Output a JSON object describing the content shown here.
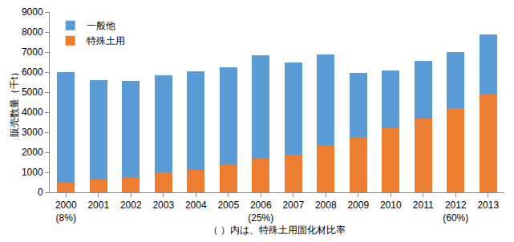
{
  "chart_data": {
    "type": "bar",
    "stacked": true,
    "categories": [
      "2000",
      "2001",
      "2002",
      "2003",
      "2004",
      "2005",
      "2006",
      "2007",
      "2008",
      "2009",
      "2010",
      "2011",
      "2012",
      "2013"
    ],
    "series": [
      {
        "name": "特殊土用",
        "color": "#ED7D31",
        "values": [
          470,
          650,
          750,
          1000,
          1130,
          1350,
          1700,
          1900,
          2350,
          2780,
          3250,
          3680,
          4200,
          4900
        ]
      },
      {
        "name": "一般他",
        "color": "#5B9BD5",
        "values": [
          5530,
          4970,
          4830,
          4850,
          4920,
          4900,
          5150,
          4600,
          4530,
          3190,
          2850,
          2870,
          2820,
          3000
        ]
      }
    ],
    "annotations": [
      {
        "category": "2000",
        "text": "(8%)"
      },
      {
        "category": "2006",
        "text": "(25%)"
      },
      {
        "category": "2012",
        "text": "(60%)"
      }
    ],
    "x_label": "（ ）内は、特殊土用固化材比率",
    "y_label": "販売数量（千t）",
    "ylim": [
      0,
      9000
    ],
    "yticks": [
      0,
      1000,
      2000,
      3000,
      4000,
      5000,
      6000,
      7000,
      8000,
      9000
    ],
    "grid": false,
    "legend": "upper left"
  }
}
